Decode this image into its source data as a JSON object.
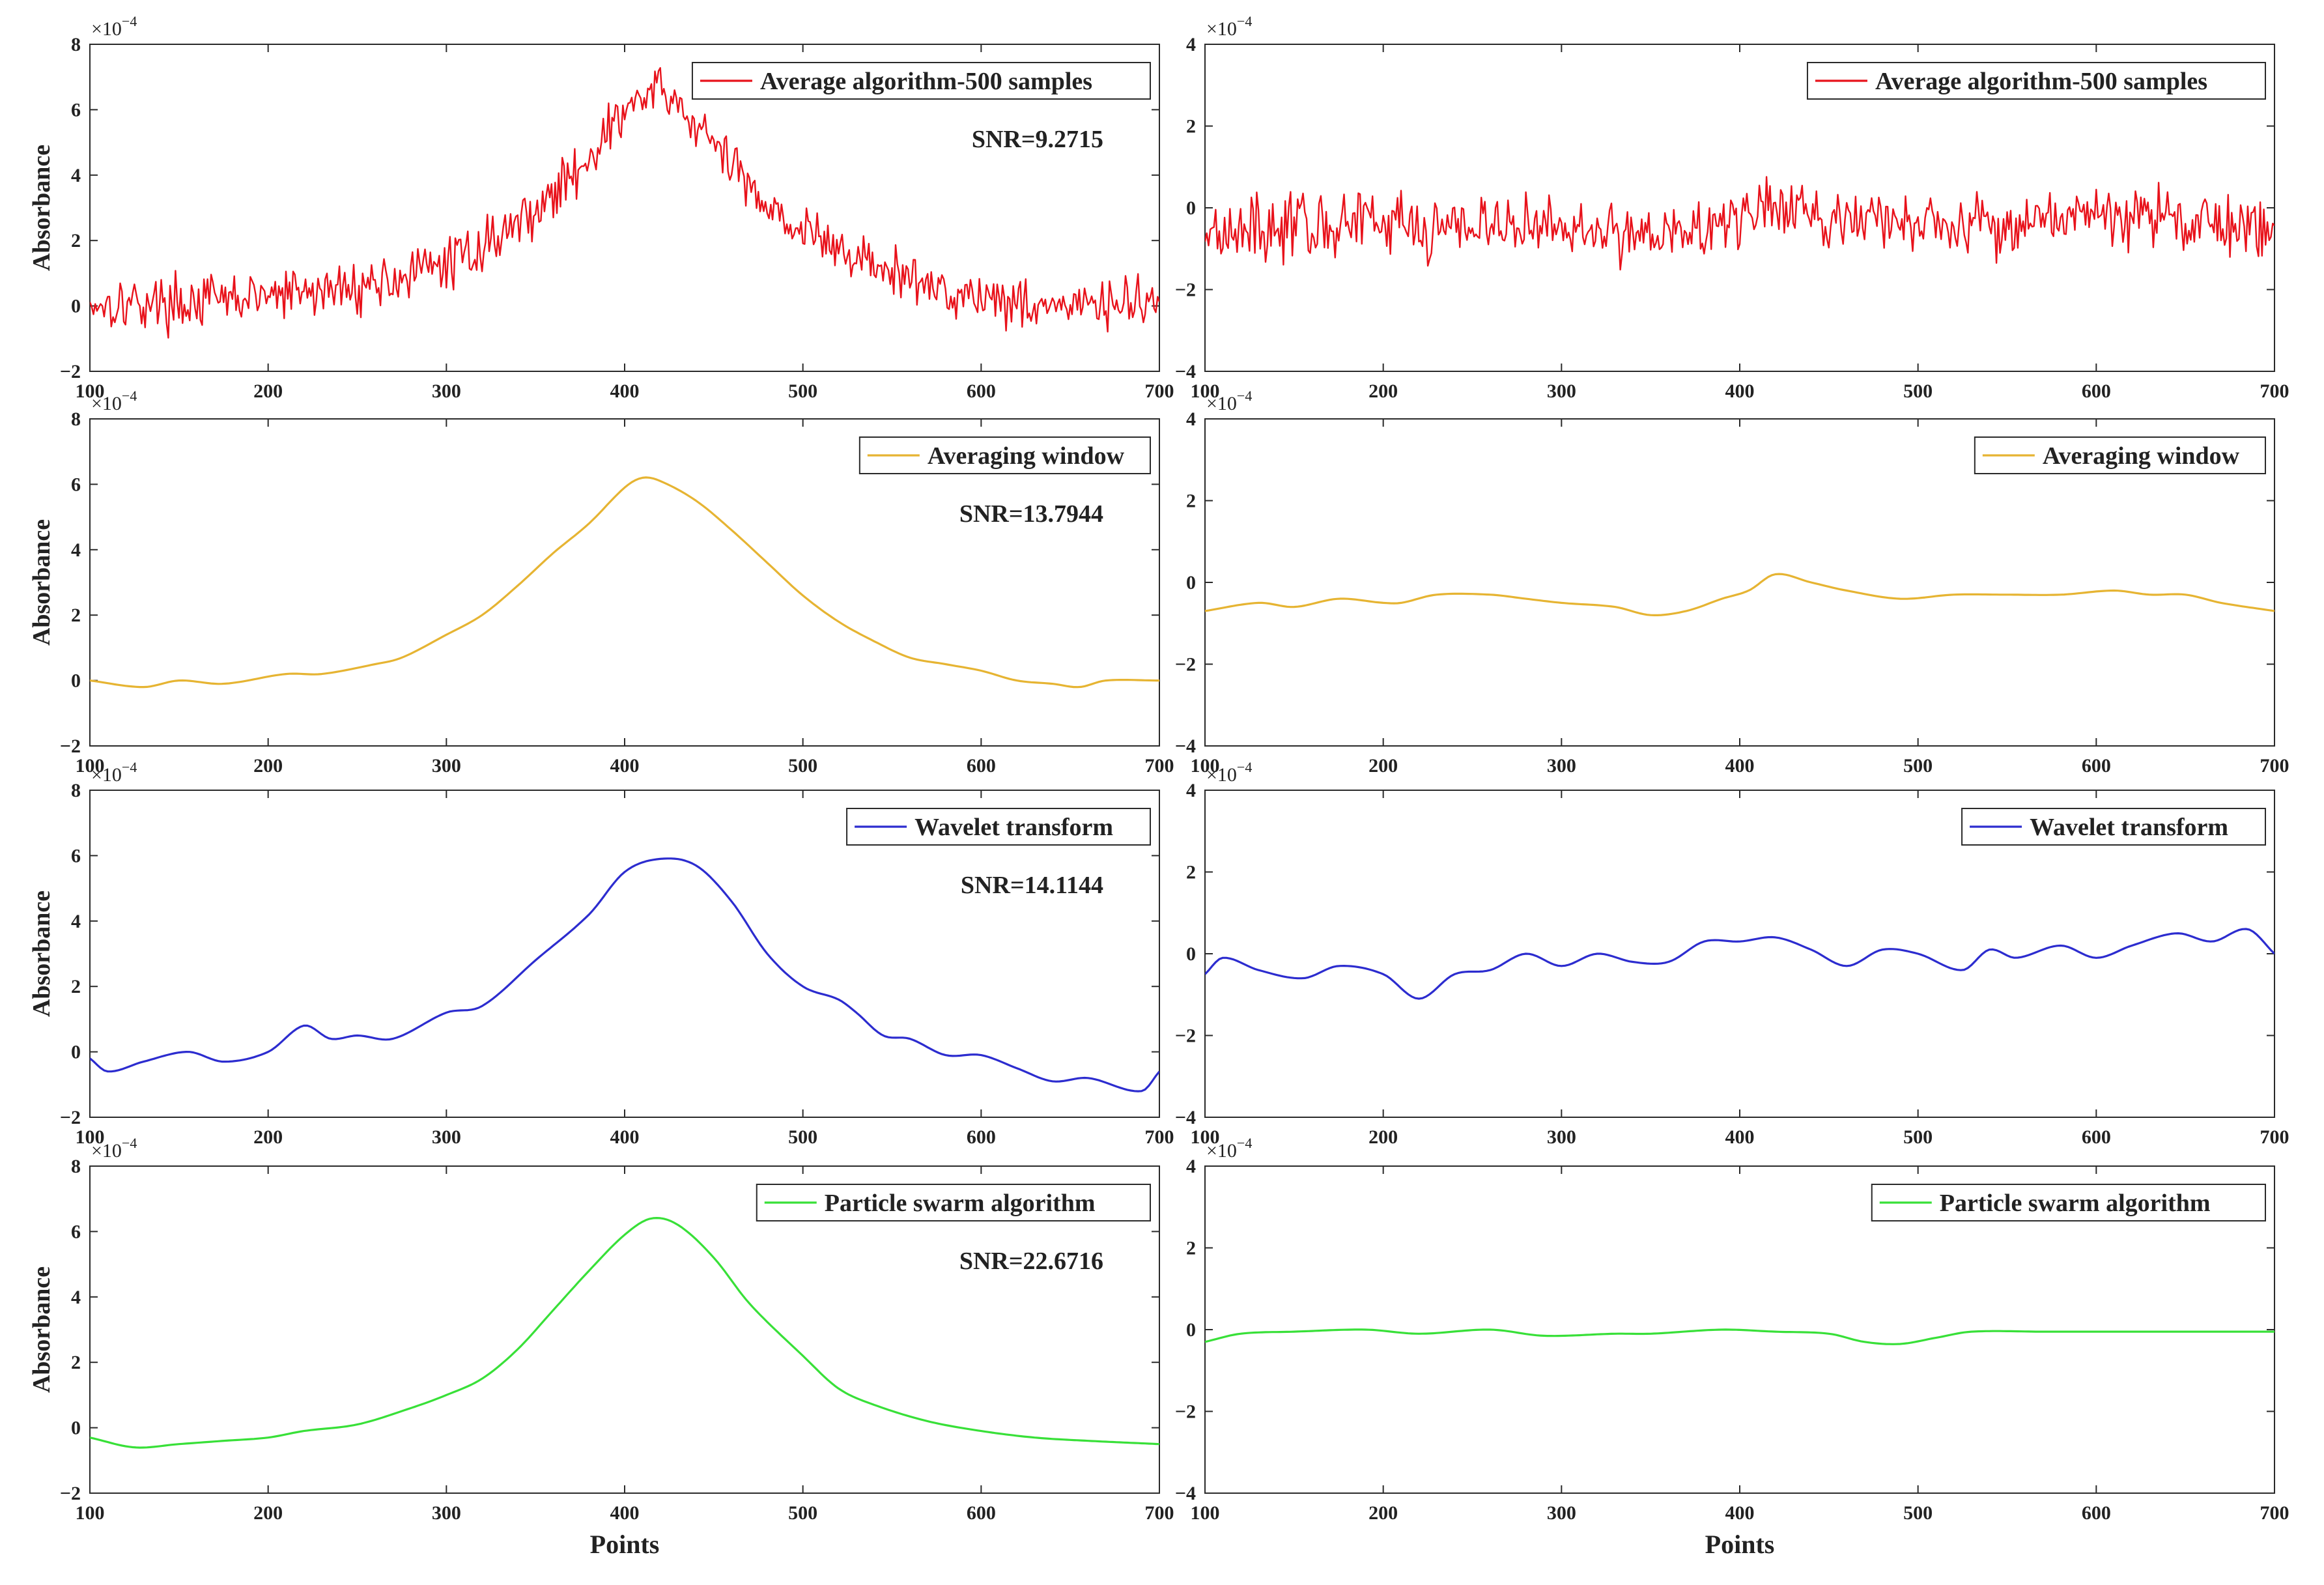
{
  "chart_data": [
    {
      "id": "avg-500-peak",
      "type": "line",
      "xlabel": "",
      "ylabel": "Absorbance",
      "ylim": [
        -2,
        8
      ],
      "xlim": [
        100,
        700
      ],
      "xticks": [
        "100",
        "200",
        "300",
        "400",
        "500",
        "600",
        "700"
      ],
      "yticks": [
        "-2",
        "0",
        "2",
        "4",
        "6",
        "8"
      ],
      "exponent": "×10",
      "exponent_power": "−4",
      "legend": "Average algorithm-500 samples",
      "legend_position": "top-right",
      "annotation": "SNR=9.2715",
      "color": "#e8121b",
      "noise": 0.6,
      "series": [
        {
          "name": "Average algorithm-500 samples",
          "x": [
            100,
            150,
            200,
            250,
            300,
            330,
            360,
            380,
            400,
            415,
            430,
            450,
            470,
            500,
            530,
            560,
            600,
            650,
            700
          ],
          "y": [
            0.1,
            0.1,
            0.3,
            0.6,
            1.3,
            2.2,
            3.4,
            4.6,
            5.9,
            6.5,
            6.1,
            4.9,
            3.7,
            2.3,
            1.5,
            0.8,
            0.3,
            0.0,
            0.1
          ]
        }
      ]
    },
    {
      "id": "avg-500-flat",
      "type": "line",
      "xlabel": "",
      "ylabel": "",
      "ylim": [
        -4,
        4
      ],
      "xlim": [
        100,
        700
      ],
      "xticks": [
        "100",
        "200",
        "300",
        "400",
        "500",
        "600",
        "700"
      ],
      "yticks": [
        "-4",
        "-2",
        "0",
        "2",
        "4"
      ],
      "exponent": "×10",
      "exponent_power": "−4",
      "legend": "Average algorithm-500 samples",
      "legend_position": "top-right",
      "annotation": "",
      "color": "#e8121b",
      "noise": 0.6,
      "series": [
        {
          "name": "Average algorithm-500 samples",
          "x": [
            100,
            200,
            300,
            350,
            400,
            420,
            450,
            500,
            550,
            600,
            650,
            700
          ],
          "y": [
            -0.5,
            -0.4,
            -0.5,
            -0.6,
            -0.3,
            0.0,
            -0.2,
            -0.4,
            -0.3,
            -0.2,
            -0.3,
            -0.7
          ]
        }
      ]
    },
    {
      "id": "window-peak",
      "type": "line",
      "xlabel": "",
      "ylabel": "Absorbance",
      "ylim": [
        -2,
        8
      ],
      "xlim": [
        100,
        700
      ],
      "xticks": [
        "100",
        "200",
        "300",
        "400",
        "500",
        "600",
        "700"
      ],
      "yticks": [
        "-2",
        "0",
        "2",
        "4",
        "6",
        "8"
      ],
      "exponent": "×10",
      "exponent_power": "−4",
      "legend": "Averaging window",
      "legend_position": "top-right",
      "annotation": "SNR=13.7944",
      "color": "#e6b432",
      "noise": 0,
      "series": [
        {
          "name": "Averaging window",
          "x": [
            100,
            130,
            150,
            175,
            210,
            230,
            260,
            275,
            300,
            320,
            340,
            360,
            380,
            400,
            410,
            420,
            440,
            460,
            480,
            500,
            520,
            540,
            560,
            580,
            600,
            620,
            640,
            655,
            670,
            700
          ],
          "y": [
            0.0,
            -0.2,
            0.0,
            -0.1,
            0.2,
            0.2,
            0.5,
            0.7,
            1.4,
            2.0,
            2.9,
            3.9,
            4.8,
            5.9,
            6.2,
            6.1,
            5.5,
            4.6,
            3.6,
            2.6,
            1.8,
            1.2,
            0.7,
            0.5,
            0.3,
            0.0,
            -0.1,
            -0.2,
            0.0,
            0.0
          ]
        }
      ]
    },
    {
      "id": "window-flat",
      "type": "line",
      "xlabel": "",
      "ylabel": "",
      "ylim": [
        -4,
        4
      ],
      "xlim": [
        100,
        700
      ],
      "xticks": [
        "100",
        "200",
        "300",
        "400",
        "500",
        "600",
        "700"
      ],
      "yticks": [
        "-4",
        "-2",
        "0",
        "2",
        "4"
      ],
      "exponent": "×10",
      "exponent_power": "−4",
      "legend": "Averaging window",
      "legend_position": "top-right",
      "annotation": "",
      "color": "#e6b432",
      "noise": 0,
      "series": [
        {
          "name": "Averaging window",
          "x": [
            100,
            130,
            150,
            175,
            200,
            210,
            230,
            260,
            280,
            300,
            330,
            350,
            370,
            390,
            405,
            420,
            440,
            460,
            490,
            520,
            550,
            580,
            610,
            630,
            650,
            670,
            700
          ],
          "y": [
            -0.7,
            -0.5,
            -0.6,
            -0.4,
            -0.5,
            -0.5,
            -0.3,
            -0.3,
            -0.4,
            -0.5,
            -0.6,
            -0.8,
            -0.7,
            -0.4,
            -0.2,
            0.2,
            0.0,
            -0.2,
            -0.4,
            -0.3,
            -0.3,
            -0.3,
            -0.2,
            -0.3,
            -0.3,
            -0.5,
            -0.7
          ]
        }
      ]
    },
    {
      "id": "wavelet-peak",
      "type": "line",
      "xlabel": "",
      "ylabel": "Absorbance",
      "ylim": [
        -2,
        8
      ],
      "xlim": [
        100,
        700
      ],
      "xticks": [
        "100",
        "200",
        "300",
        "400",
        "500",
        "600",
        "700"
      ],
      "yticks": [
        "-2",
        "0",
        "2",
        "4",
        "6",
        "8"
      ],
      "exponent": "×10",
      "exponent_power": "−4",
      "legend": "Wavelet transform",
      "legend_position": "top-right",
      "annotation": "SNR=14.1144",
      "color": "#2c2ccf",
      "noise": 0,
      "series": [
        {
          "name": "Wavelet transform",
          "x": [
            100,
            110,
            130,
            155,
            175,
            200,
            220,
            235,
            250,
            270,
            300,
            320,
            350,
            380,
            400,
            420,
            440,
            460,
            480,
            500,
            520,
            530,
            545,
            560,
            580,
            600,
            620,
            640,
            660,
            690,
            700
          ],
          "y": [
            -0.2,
            -0.6,
            -0.3,
            0.0,
            -0.3,
            0.0,
            0.8,
            0.4,
            0.5,
            0.4,
            1.2,
            1.4,
            2.8,
            4.2,
            5.5,
            5.9,
            5.7,
            4.6,
            3.0,
            2.0,
            1.6,
            1.2,
            0.5,
            0.4,
            -0.1,
            -0.1,
            -0.5,
            -0.9,
            -0.8,
            -1.2,
            -0.6
          ]
        }
      ]
    },
    {
      "id": "wavelet-flat",
      "type": "line",
      "xlabel": "",
      "ylabel": "",
      "ylim": [
        -4,
        4
      ],
      "xlim": [
        100,
        700
      ],
      "xticks": [
        "100",
        "200",
        "300",
        "400",
        "500",
        "600",
        "700"
      ],
      "yticks": [
        "-4",
        "-2",
        "0",
        "2",
        "4"
      ],
      "exponent": "×10",
      "exponent_power": "−4",
      "legend": "Wavelet transform",
      "legend_position": "top-right",
      "annotation": "",
      "color": "#2c2ccf",
      "noise": 0,
      "series": [
        {
          "name": "Wavelet transform",
          "x": [
            100,
            110,
            130,
            155,
            175,
            200,
            220,
            240,
            260,
            280,
            300,
            320,
            340,
            360,
            380,
            400,
            420,
            440,
            460,
            480,
            500,
            525,
            540,
            555,
            580,
            600,
            620,
            645,
            665,
            685,
            700
          ],
          "y": [
            -0.5,
            -0.1,
            -0.4,
            -0.6,
            -0.3,
            -0.5,
            -1.1,
            -0.5,
            -0.4,
            0.0,
            -0.3,
            0.0,
            -0.2,
            -0.2,
            0.3,
            0.3,
            0.4,
            0.1,
            -0.3,
            0.1,
            0.0,
            -0.4,
            0.1,
            -0.1,
            0.2,
            -0.1,
            0.2,
            0.5,
            0.3,
            0.6,
            0.0
          ]
        }
      ]
    },
    {
      "id": "pso-peak",
      "type": "line",
      "xlabel": "Points",
      "ylabel": "Absorbance",
      "ylim": [
        -2,
        8
      ],
      "xlim": [
        100,
        700
      ],
      "xticks": [
        "100",
        "200",
        "300",
        "400",
        "500",
        "600",
        "700"
      ],
      "yticks": [
        "-2",
        "0",
        "2",
        "4",
        "6",
        "8"
      ],
      "exponent": "×10",
      "exponent_power": "−4",
      "legend": "Particle swarm algorithm",
      "legend_position": "top-right",
      "annotation": "SNR=22.6716",
      "color": "#38e038",
      "noise": 0,
      "series": [
        {
          "name": "Particle swarm algorithm",
          "x": [
            100,
            125,
            150,
            175,
            200,
            220,
            250,
            280,
            300,
            320,
            340,
            360,
            380,
            400,
            415,
            430,
            450,
            470,
            500,
            520,
            540,
            570,
            600,
            630,
            660,
            700
          ],
          "y": [
            -0.3,
            -0.6,
            -0.5,
            -0.4,
            -0.3,
            -0.1,
            0.1,
            0.6,
            1.0,
            1.5,
            2.4,
            3.6,
            4.8,
            5.9,
            6.4,
            6.2,
            5.2,
            3.8,
            2.2,
            1.2,
            0.7,
            0.2,
            -0.1,
            -0.3,
            -0.4,
            -0.5
          ]
        }
      ]
    },
    {
      "id": "pso-flat",
      "type": "line",
      "xlabel": "Points",
      "ylabel": "",
      "ylim": [
        -4,
        4
      ],
      "xlim": [
        100,
        700
      ],
      "xticks": [
        "100",
        "200",
        "300",
        "400",
        "500",
        "600",
        "700"
      ],
      "yticks": [
        "-4",
        "-2",
        "0",
        "2",
        "4"
      ],
      "exponent": "×10",
      "exponent_power": "−4",
      "legend": "Particle swarm algorithm",
      "legend_position": "top-right",
      "annotation": "",
      "color": "#38e038",
      "noise": 0,
      "series": [
        {
          "name": "Particle swarm algorithm",
          "x": [
            100,
            120,
            150,
            190,
            220,
            260,
            290,
            330,
            350,
            390,
            420,
            450,
            470,
            490,
            510,
            530,
            570,
            620,
            700
          ],
          "y": [
            -0.3,
            -0.1,
            -0.05,
            0.0,
            -0.1,
            0.0,
            -0.15,
            -0.1,
            -0.1,
            0.0,
            -0.05,
            -0.1,
            -0.3,
            -0.35,
            -0.2,
            -0.05,
            -0.05,
            -0.05,
            -0.05
          ]
        }
      ]
    }
  ]
}
